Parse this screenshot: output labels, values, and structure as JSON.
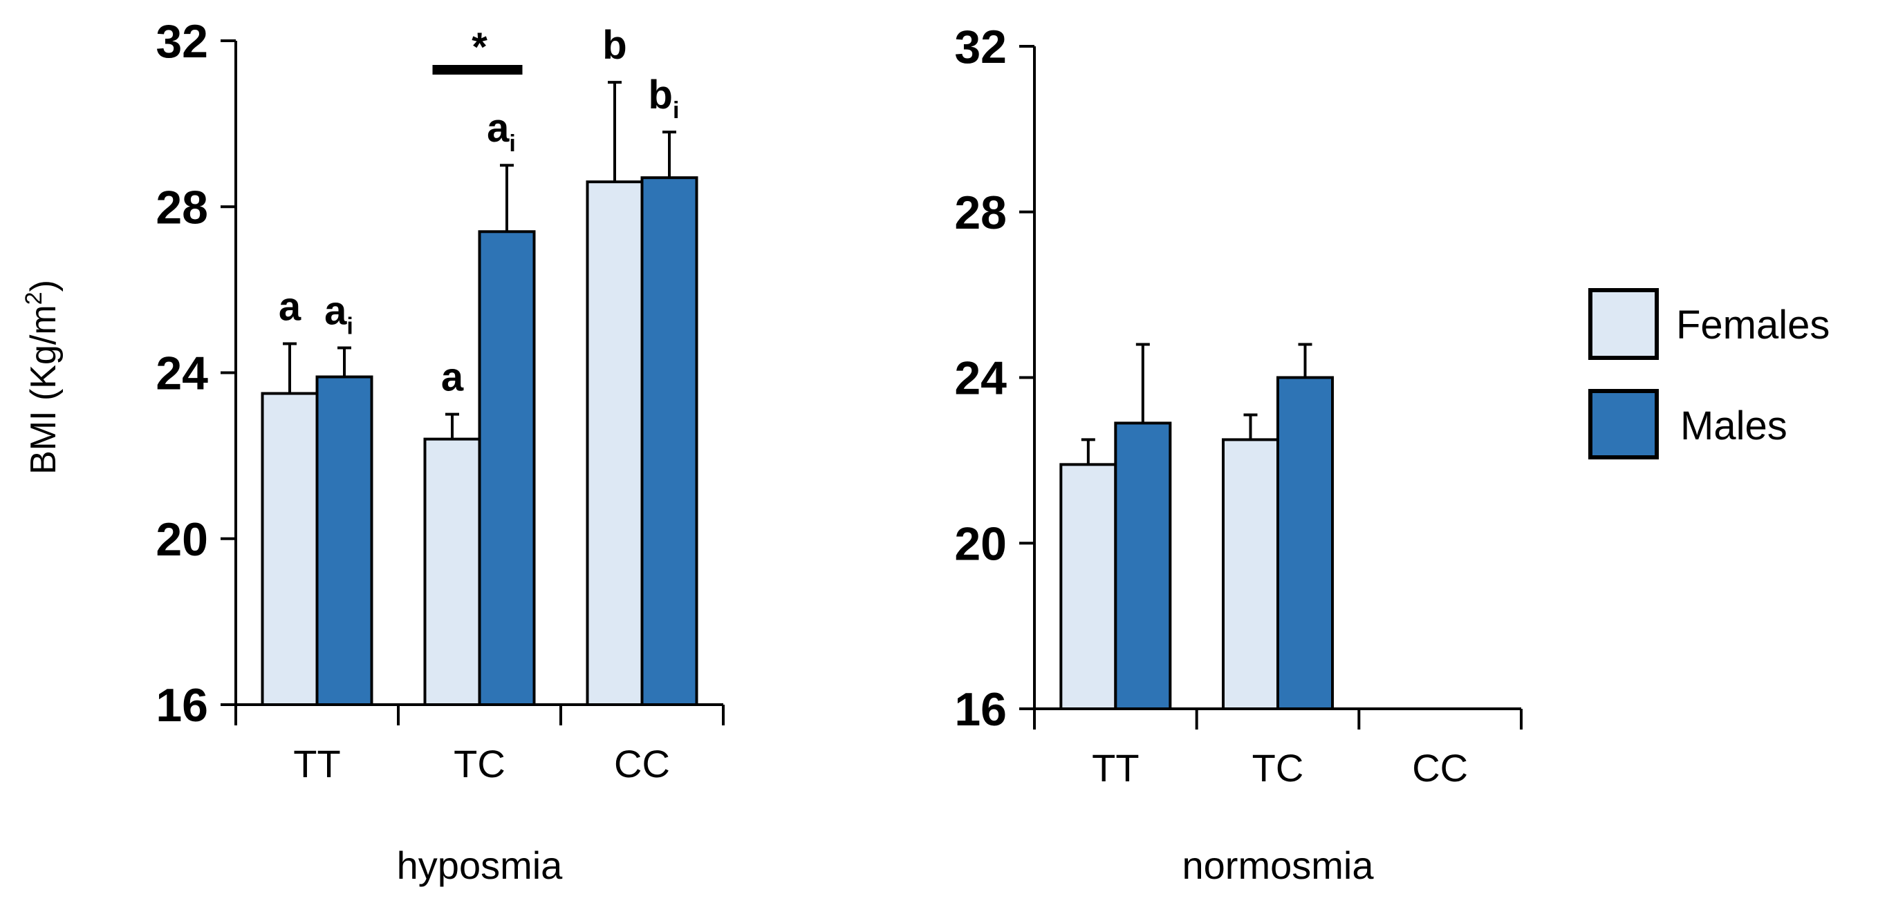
{
  "chart_data": {
    "type": "bar",
    "ylabel": "BMI (Kg/m²)",
    "ylabel_base": "BMI (Kg/m",
    "ylabel_sup": "2",
    "ylabel_end": ")",
    "ylim": [
      16,
      32
    ],
    "yticks": [
      "16",
      "20",
      "24",
      "28",
      "32"
    ],
    "legend": {
      "placement": "right",
      "entries": [
        "Females",
        "Males"
      ]
    },
    "colors": {
      "Females": "#dde8f4",
      "Males": "#2e74b5"
    },
    "significance_marker": "*",
    "panels": [
      {
        "group_label": "hyposmia",
        "categories": [
          "TT",
          "TC",
          "CC"
        ],
        "series": [
          {
            "name": "Females",
            "values": [
              23.5,
              22.4,
              28.6
            ],
            "errors": [
              1.2,
              0.6,
              2.4
            ],
            "letters": [
              "a",
              "a",
              "b"
            ],
            "subscripts": [
              "",
              "",
              ""
            ]
          },
          {
            "name": "Males",
            "values": [
              23.9,
              27.4,
              28.7
            ],
            "errors": [
              0.7,
              1.6,
              1.1
            ],
            "letters": [
              "a",
              "a",
              "b"
            ],
            "subscripts": [
              "i",
              "i",
              "i"
            ]
          }
        ],
        "significance_category": "TC"
      },
      {
        "group_label": "normosmia",
        "categories": [
          "TT",
          "TC",
          "CC"
        ],
        "series": [
          {
            "name": "Females",
            "values": [
              21.9,
              22.5,
              null
            ],
            "errors": [
              0.6,
              0.6,
              null
            ]
          },
          {
            "name": "Males",
            "values": [
              22.9,
              24.0,
              null
            ],
            "errors": [
              1.9,
              0.8,
              null
            ]
          }
        ]
      }
    ]
  }
}
